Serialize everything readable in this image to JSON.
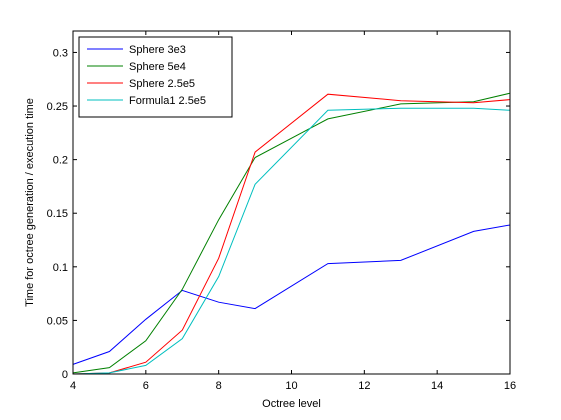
{
  "chart_data": {
    "type": "line",
    "title": "",
    "xlabel": "Octree level",
    "ylabel": "Time for octree generation / execution time",
    "xlim": [
      4,
      16
    ],
    "ylim": [
      0,
      0.32
    ],
    "xticks": [
      4,
      6,
      8,
      10,
      12,
      14,
      16
    ],
    "xtick_labels": [
      "4",
      "6",
      "8",
      "10",
      "12",
      "14",
      "16"
    ],
    "yticks": [
      0,
      0.05,
      0.1,
      0.15,
      0.2,
      0.25,
      0.3
    ],
    "ytick_labels": [
      "0",
      "0.05",
      "0.1",
      "0.15",
      "0.2",
      "0.25",
      "0.3"
    ],
    "grid": false,
    "legend_position": "top-left",
    "series": [
      {
        "name": "Sphere 3e3",
        "color": "#0000ff",
        "x": [
          4,
          5,
          6,
          7,
          8,
          9,
          11,
          13,
          15,
          16
        ],
        "y": [
          0.009,
          0.021,
          0.051,
          0.078,
          0.067,
          0.061,
          0.103,
          0.106,
          0.133,
          0.139
        ]
      },
      {
        "name": "Sphere 5e4",
        "color": "#008000",
        "x": [
          4,
          5,
          6,
          7,
          8,
          9,
          11,
          13,
          15,
          16
        ],
        "y": [
          0.001,
          0.006,
          0.031,
          0.079,
          0.144,
          0.202,
          0.238,
          0.252,
          0.254,
          0.262
        ]
      },
      {
        "name": "Sphere 2.5e5",
        "color": "#ff0000",
        "x": [
          4,
          5,
          6,
          7,
          8,
          9,
          11,
          13,
          15,
          16
        ],
        "y": [
          0.0,
          0.001,
          0.011,
          0.041,
          0.108,
          0.207,
          0.261,
          0.255,
          0.253,
          0.256
        ]
      },
      {
        "name": "Formula1 2.5e5",
        "color": "#00bfbf",
        "x": [
          4,
          5,
          6,
          7,
          8,
          9,
          11,
          13,
          15,
          16
        ],
        "y": [
          0.0,
          0.001,
          0.008,
          0.033,
          0.091,
          0.177,
          0.246,
          0.248,
          0.248,
          0.246
        ]
      }
    ]
  }
}
